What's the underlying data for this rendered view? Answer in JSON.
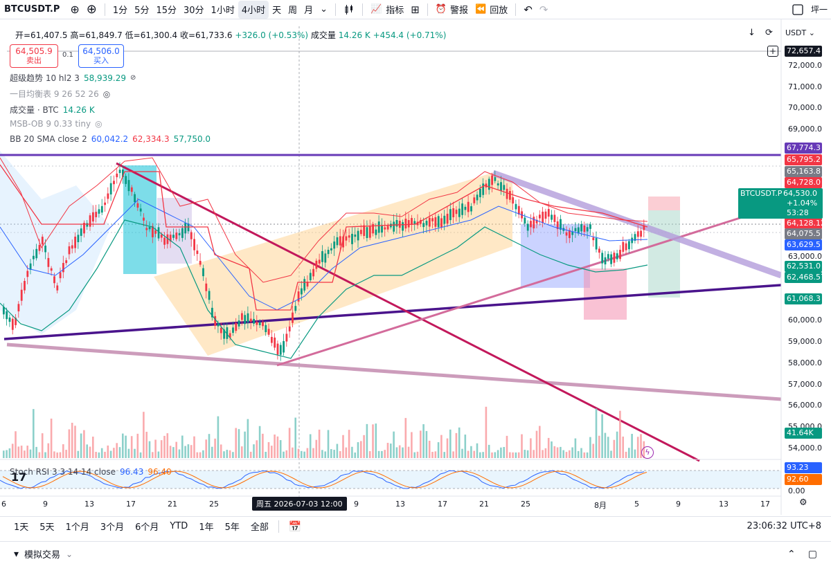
{
  "toolbar": {
    "symbol": "BTCUSDT.P",
    "intervals": [
      "1分",
      "5分",
      "15分",
      "30分",
      "1小时",
      "4小时",
      "天",
      "周",
      "月"
    ],
    "active_interval": "4小时",
    "indicators_label": "指标",
    "alert_label": "警报",
    "replay_label": "回放",
    "right_label": "坪一"
  },
  "ohlc": {
    "open": "开=61,407.5",
    "high": "高=61,849.7",
    "low": "低=61,300.4",
    "close": "收=61,733.6",
    "change": "+326.0 (+0.53%)",
    "volume_label": "成交量",
    "volume": "14.26 K",
    "volume_change": "+454.4 (+0.71%)"
  },
  "currency": "USDT",
  "trade": {
    "sell_price": "64,505.9",
    "sell_label": "卖出",
    "spread": "0.1",
    "buy_price": "64,506.0",
    "buy_label": "买入"
  },
  "indicators": [
    {
      "name": "超级趋势 10 hl2 3",
      "value": "58,939.29",
      "color": "#089981"
    },
    {
      "name": "一目均衡表 9 26 52 26",
      "value": "",
      "color": "#9598a1"
    },
    {
      "name": "成交量 · BTC",
      "value": "14.26 K",
      "color": "#089981"
    },
    {
      "name": "MSB-OB 9 0.33 tiny",
      "value": "",
      "color": "#9598a1"
    },
    {
      "name": "BB 20 SMA close 2",
      "value": "60,042.2",
      "value2": "62,334.3",
      "value3": "57,750.0"
    }
  ],
  "price_axis": [
    "72,000.0",
    "71,000.0",
    "70,000.0",
    "69,000.0",
    "68,000.0",
    "67,000.0",
    "66,000.0",
    "65,000.0",
    "64,000.0",
    "63,000.0",
    "62,000.0",
    "61,000.0",
    "60,000.0",
    "59,000.0",
    "58,000.0",
    "57,000.0",
    "56,000.0",
    "55,000.0",
    "54,000.0"
  ],
  "price_tags": [
    {
      "label": "72,657.4",
      "color": "#131722",
      "text": "#ffffff"
    },
    {
      "label": "67,774.3",
      "color": "#673ab7",
      "text": "#ffffff"
    },
    {
      "label": "65,795.2",
      "color": "#f23645",
      "text": "#ffffff"
    },
    {
      "label": "65,163.8",
      "color": "#787b86",
      "text": "#ffffff"
    },
    {
      "label": "64,728.0",
      "color": "#f23645",
      "text": "#ffffff"
    },
    {
      "label": "64,128.12",
      "color": "#f23645",
      "text": "#ffffff"
    },
    {
      "label": "64,075.5",
      "color": "#787b86",
      "text": "#ffffff"
    },
    {
      "label": "63,629.5",
      "color": "#2962ff",
      "text": "#ffffff"
    },
    {
      "label": "62,531.0",
      "color": "#089981",
      "text": "#ffffff"
    },
    {
      "label": "62,468.57",
      "color": "#089981",
      "text": "#ffffff"
    },
    {
      "label": "61,068.3",
      "color": "#089981",
      "text": "#ffffff"
    },
    {
      "label": "41.64K",
      "color": "#089981",
      "text": "#ffffff"
    }
  ],
  "last_price_box": {
    "symbol": "BTCUSDT.P",
    "price": "64,530.0",
    "change": "+1.04%",
    "countdown": "53:28"
  },
  "stoch": {
    "label": "Stoch RSI 3 3 14 14 close",
    "k": "96.43",
    "d": "96.40",
    "tag_k": "93.23",
    "tag_d": "92.60",
    "axis_zero": "0.00"
  },
  "time_axis": [
    "6",
    "9",
    "13",
    "17",
    "21",
    "25",
    "9",
    "13",
    "17",
    "21",
    "25",
    "8月",
    "5",
    "9",
    "13",
    "17"
  ],
  "crosshair_time": "周五 2026-07-03  12:00",
  "ranges": [
    "1天",
    "5天",
    "1个月",
    "3个月",
    "6个月",
    "YTD",
    "1年",
    "5年",
    "全部"
  ],
  "clock": "23:06:32 UTC+8",
  "footer_label": "模拟交易"
}
